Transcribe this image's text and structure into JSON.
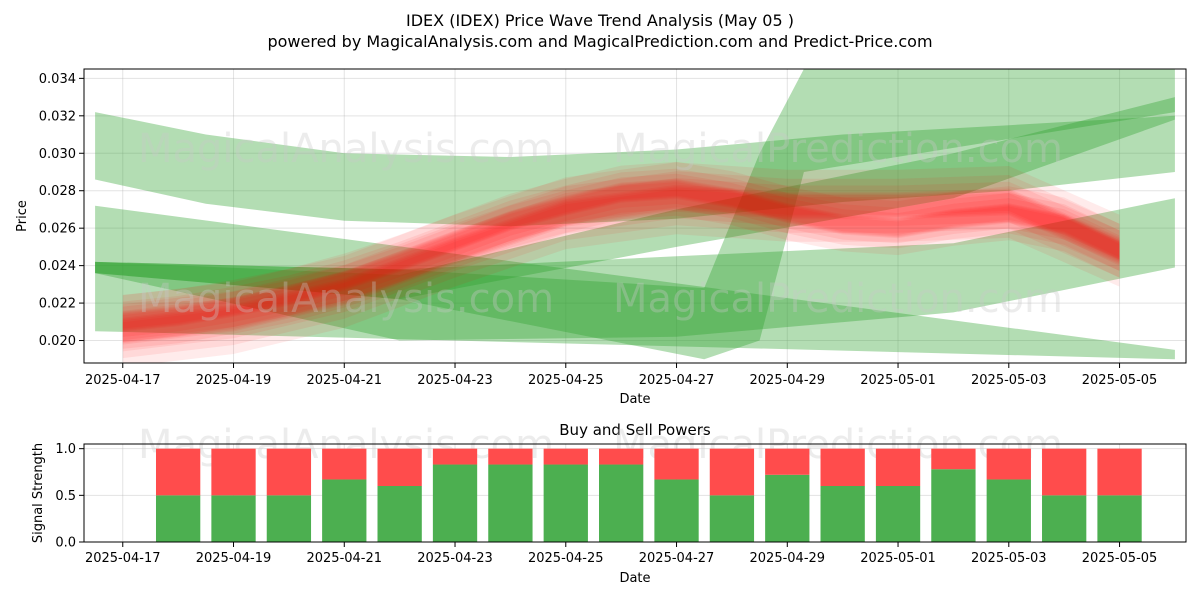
{
  "title": "IDEX (IDEX) Price Wave Trend Analysis (May 05 )",
  "subtitle": "powered by MagicalAnalysis.com and MagicalPrediction.com and Predict-Price.com",
  "watermarks": [
    "MagicalAnalysis.com",
    "MagicalPrediction.com"
  ],
  "colors": {
    "green_band": "#2ca02c",
    "red_band": "#ff0000",
    "buy": "#4caf50",
    "sell": "#ff4c4c"
  },
  "chart_data": [
    {
      "type": "line",
      "name": "price-chart",
      "xlabel": "Date",
      "ylabel": "Price",
      "x_ticks": [
        "2025-04-17",
        "2025-04-19",
        "2025-04-21",
        "2025-04-23",
        "2025-04-25",
        "2025-04-27",
        "2025-04-29",
        "2025-05-01",
        "2025-05-03",
        "2025-05-05"
      ],
      "y_ticks": [
        0.02,
        0.022,
        0.024,
        0.026,
        0.028,
        0.03,
        0.032,
        0.034
      ],
      "ylim": [
        0.0188,
        0.0345
      ],
      "xlim_days": [
        -0.7,
        19.2
      ],
      "grid": true,
      "price_bands": [
        {
          "name": "red-wave",
          "x_days": [
            0,
            1,
            2,
            3,
            4,
            5,
            6,
            7,
            8,
            9,
            10,
            11,
            12,
            13,
            14,
            15,
            16,
            17,
            18
          ],
          "center": [
            0.021,
            0.0213,
            0.0218,
            0.0224,
            0.0232,
            0.0242,
            0.0253,
            0.0264,
            0.0272,
            0.0279,
            0.0281,
            0.0276,
            0.0268,
            0.0262,
            0.026,
            0.0265,
            0.0268,
            0.0262,
            0.0248
          ],
          "spread": 0.0009
        },
        {
          "name": "red-wave-light",
          "x_days": [
            0,
            2,
            4,
            6,
            8,
            10,
            12,
            14,
            16,
            18
          ],
          "center": [
            0.0205,
            0.0212,
            0.0226,
            0.0248,
            0.0268,
            0.0276,
            0.0272,
            0.0272,
            0.0274,
            0.0248
          ],
          "spread": 0.0012
        }
      ],
      "trend_bands": [
        {
          "name": "upper-curved-band",
          "x_days": [
            -0.5,
            1.5,
            4,
            7,
            10,
            13,
            16,
            19
          ],
          "upper": [
            0.0322,
            0.031,
            0.03,
            0.0298,
            0.0302,
            0.031,
            0.0315,
            0.032
          ],
          "lower": [
            0.0286,
            0.0273,
            0.0264,
            0.0261,
            0.0265,
            0.0274,
            0.028,
            0.029
          ]
        },
        {
          "name": "descending-band",
          "x_days": [
            -0.5,
            19
          ],
          "upper": [
            0.0272,
            0.0195
          ],
          "lower": [
            0.0205,
            0.019
          ]
        },
        {
          "name": "flat-lower-band",
          "x_days": [
            -0.5,
            5,
            10,
            15,
            19
          ],
          "upper": [
            0.0242,
            0.0238,
            0.0245,
            0.0252,
            0.0276
          ],
          "lower": [
            0.0236,
            0.02,
            0.0202,
            0.0215,
            0.0239
          ]
        },
        {
          "name": "rising-band",
          "x_days": [
            -0.5,
            5,
            10,
            15,
            19
          ],
          "upper": [
            0.0242,
            0.0235,
            0.027,
            0.03,
            0.033
          ],
          "lower": [
            0.0236,
            0.0222,
            0.025,
            0.0276,
            0.0318
          ]
        },
        {
          "name": "step-band",
          "x_days": [
            -0.5,
            5,
            10.5,
            11.5,
            12.3,
            19
          ],
          "upper": [
            0.0242,
            0.0238,
            0.0228,
            0.03,
            0.0345,
            0.0345
          ],
          "lower": [
            0.0236,
            0.0222,
            0.019,
            0.02,
            0.029,
            0.0322
          ]
        }
      ]
    },
    {
      "type": "bar",
      "name": "buy-sell-chart",
      "title": "Buy and Sell Powers",
      "xlabel": "Date",
      "ylabel": "Signal Strength",
      "x_ticks": [
        "2025-04-17",
        "2025-04-19",
        "2025-04-21",
        "2025-04-23",
        "2025-04-25",
        "2025-04-27",
        "2025-04-29",
        "2025-05-01",
        "2025-05-03",
        "2025-05-05"
      ],
      "y_ticks": [
        0.0,
        0.5,
        1.0
      ],
      "ylim": [
        0,
        1.05
      ],
      "xlim_days": [
        -0.7,
        19.2
      ],
      "categories": [
        "2025-04-18",
        "2025-04-19",
        "2025-04-20",
        "2025-04-21",
        "2025-04-22",
        "2025-04-23",
        "2025-04-24",
        "2025-04-25",
        "2025-04-26",
        "2025-04-27",
        "2025-04-28",
        "2025-04-29",
        "2025-04-30",
        "2025-05-01",
        "2025-05-02",
        "2025-05-03",
        "2025-05-04",
        "2025-05-05"
      ],
      "series": [
        {
          "name": "Buy",
          "values": [
            0.5,
            0.5,
            0.5,
            0.67,
            0.6,
            0.83,
            0.83,
            0.83,
            0.83,
            0.67,
            0.5,
            0.72,
            0.6,
            0.6,
            0.78,
            0.67,
            0.5,
            0.5
          ]
        },
        {
          "name": "Sell",
          "values": [
            0.5,
            0.5,
            0.5,
            0.33,
            0.4,
            0.17,
            0.17,
            0.17,
            0.17,
            0.33,
            0.5,
            0.28,
            0.4,
            0.4,
            0.22,
            0.33,
            0.5,
            0.5
          ]
        }
      ]
    }
  ]
}
